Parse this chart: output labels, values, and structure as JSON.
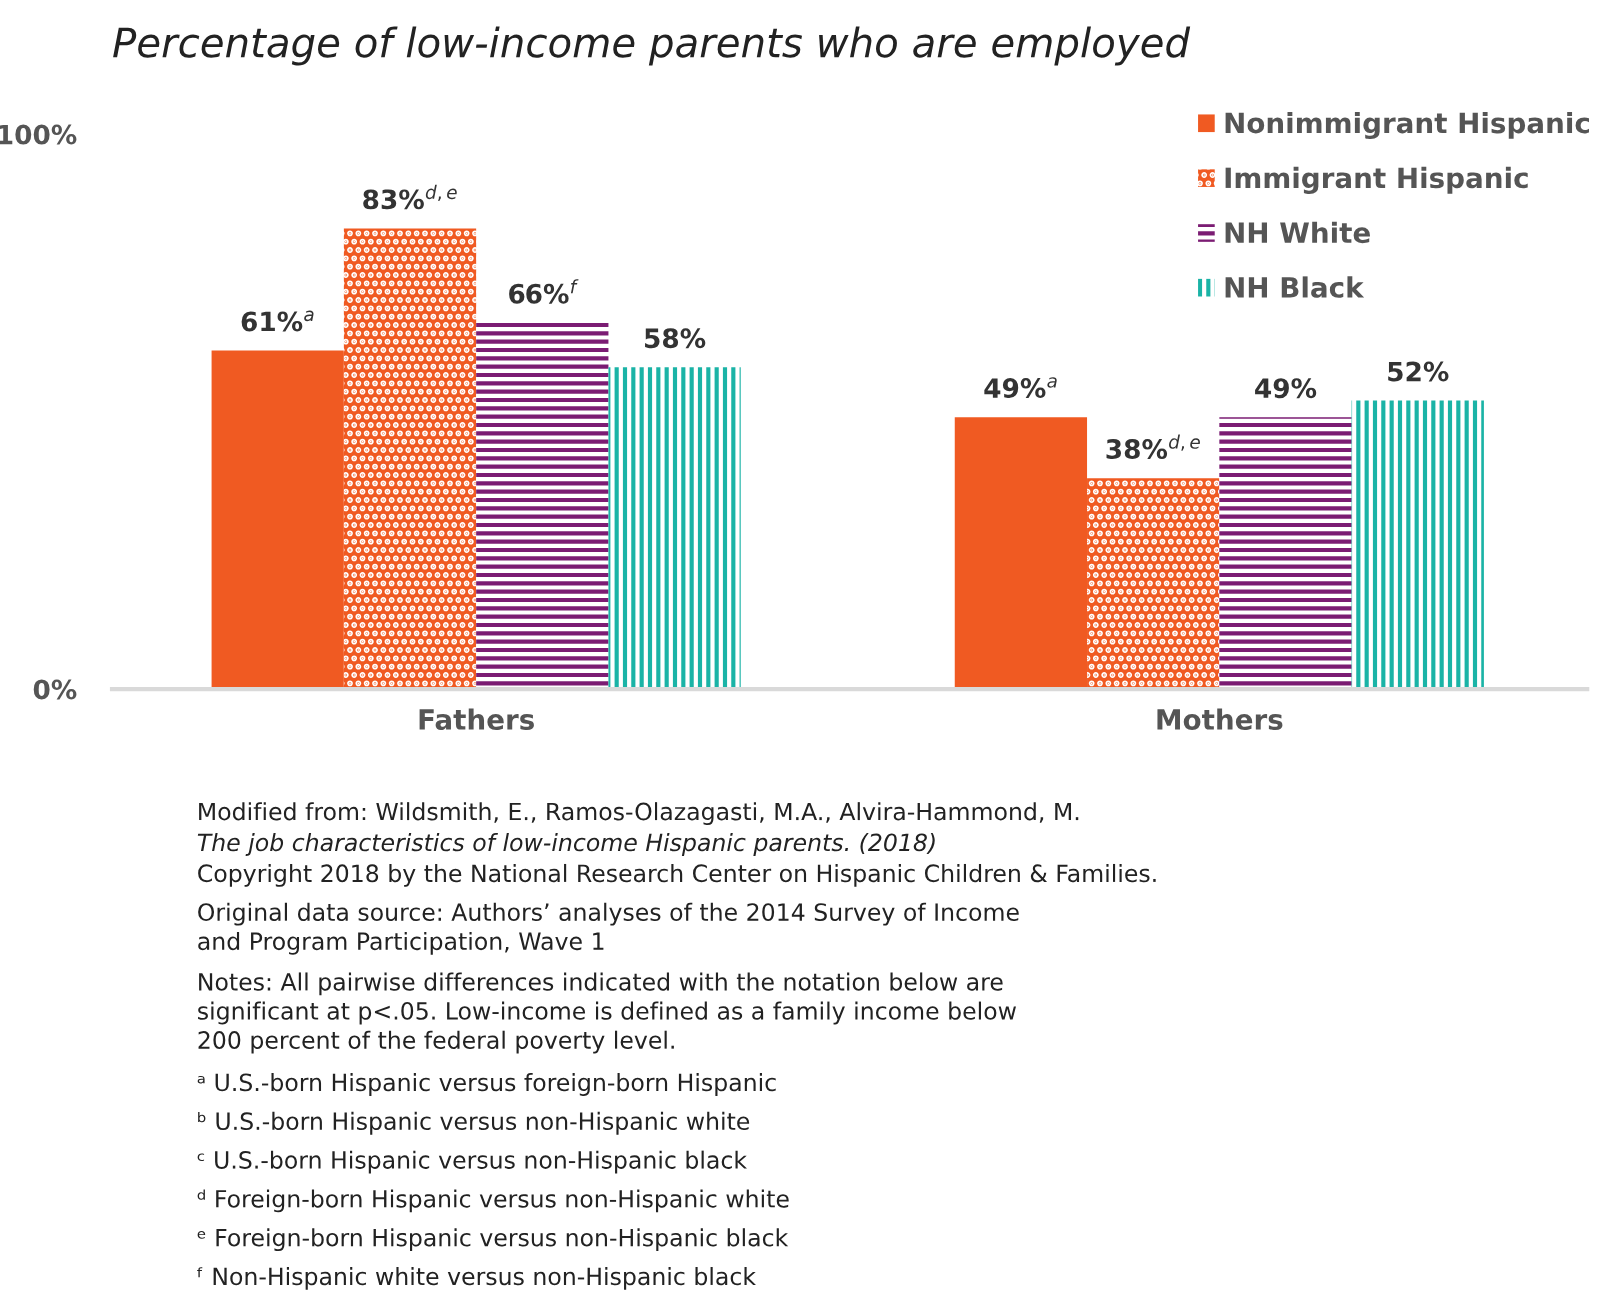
{
  "chart_data": {
    "type": "bar",
    "title": "Percentage of low-income parents who are employed",
    "categories": [
      "Fathers",
      "Mothers"
    ],
    "series": [
      {
        "name": "Nonimmigrant Hispanic",
        "color": "#f05a22",
        "values": [
          61,
          49
        ],
        "value_labels": [
          "61%$^{a}$",
          "49%$^{a}$"
        ]
      },
      {
        "name": "Immigrant Hispanic",
        "color": "#f05a22",
        "values": [
          83,
          38
        ],
        "value_labels": [
          "83%$^{d,e}$",
          "38%$^{d,e}$"
        ]
      },
      {
        "name": "NH White",
        "color": "#7b1c73",
        "values": [
          66,
          49
        ],
        "value_labels": [
          "66%$^{f}$",
          "49%"
        ]
      },
      {
        "name": "NH Black",
        "color": "#1ab3a6",
        "values": [
          58,
          52
        ],
        "value_labels": [
          "58%",
          "52%"
        ]
      }
    ],
    "ylim": [
      0,
      100
    ],
    "yticks": [
      {
        "value": 0,
        "label": "0%"
      },
      {
        "value": 100,
        "label": "100%"
      }
    ],
    "grid": false,
    "legend": "top right",
    "annotations": [
      "Modified from: Wildsmith, E., Ramos-Olazagasti, M.A., Alvira-Hammond, M.",
      "The job characteristics of low-income Hispanic parents. (2018)",
      "Copyright 2018 by the National Research Center on Hispanic Children & Families.",
      "Original data source: Authors’ analyses of the 2014 Survey of Income\nand Program Participation, Wave 1",
      "Notes: All pairwise differences indicated with the notation below are\nsignificant at p<.05. Low-income is defined as a family income below\n200 percent of the federal poverty level.",
      "ᵃ U.S.-born Hispanic versus foreign-born Hispanic",
      "ᵇ U.S.-born Hispanic versus non-Hispanic white",
      "ᶜ U.S.-born Hispanic versus non-Hispanic black",
      "ᵈ Foreign-born Hispanic versus non-Hispanic white",
      "ᵉ Foreign-born Hispanic versus non-Hispanic black",
      "ᶠ Non-Hispanic white versus non-Hispanic black"
    ]
  }
}
